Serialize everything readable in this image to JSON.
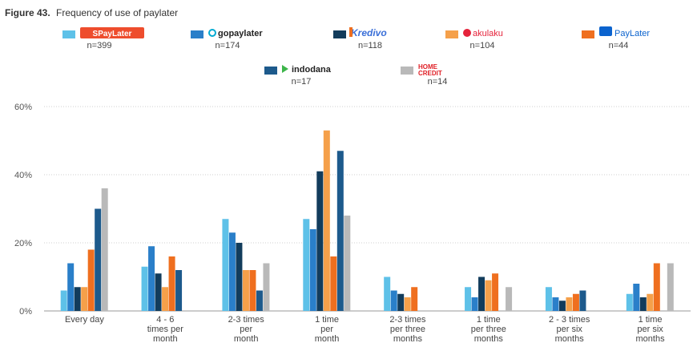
{
  "figure": {
    "label": "Figure 43.",
    "caption": "Frequency of use of paylater"
  },
  "chart_data": {
    "type": "bar",
    "title": "Frequency of use of paylater",
    "ylim": [
      0,
      60
    ],
    "yticks": [
      0,
      20,
      40,
      60
    ],
    "ytick_labels": [
      "0%",
      "20%",
      "40%",
      "60%"
    ],
    "grid": true,
    "legend_position": "top",
    "categories": [
      [
        "Every day"
      ],
      [
        "4 - 6",
        "times per",
        "month"
      ],
      [
        "2-3 times",
        "per",
        "month"
      ],
      [
        "1 time",
        "per",
        "month"
      ],
      [
        "2-3 times",
        "per three",
        "months"
      ],
      [
        "1 time",
        "per three",
        "months"
      ],
      [
        "2 - 3 times",
        "per six",
        "months"
      ],
      [
        "1 time",
        "per six",
        "months"
      ]
    ],
    "series": [
      {
        "name": "SPayLater",
        "n": "n=399",
        "color": "#5ec1e8",
        "icon": "spaylater-logo",
        "values": [
          6,
          13,
          27,
          27,
          10,
          7,
          7,
          5
        ]
      },
      {
        "name": "gopaylater",
        "n": "n=174",
        "color": "#2a7fc9",
        "icon": "gopaylater-logo",
        "values": [
          14,
          19,
          23,
          24,
          6,
          4,
          4,
          8
        ]
      },
      {
        "name": "Kredivo",
        "n": "n=118",
        "color": "#123c5c",
        "icon": "kredivo-logo",
        "values": [
          7,
          11,
          20,
          41,
          5,
          10,
          3,
          4
        ]
      },
      {
        "name": "akulaku",
        "n": "n=104",
        "color": "#f5a04a",
        "icon": "akulaku-logo",
        "values": [
          7,
          7,
          12,
          53,
          4,
          9,
          4,
          5
        ]
      },
      {
        "name": "PayLater",
        "n": "n=44",
        "color": "#ef6f1f",
        "icon": "paylater-logo",
        "values": [
          18,
          16,
          12,
          16,
          7,
          11,
          5,
          14
        ]
      },
      {
        "name": "indodana",
        "n": "n=17",
        "color": "#1d5a8c",
        "icon": "indodana-logo",
        "values": [
          30,
          12,
          6,
          47,
          0,
          0,
          6,
          0
        ]
      },
      {
        "name": "HOME CREDIT",
        "n": "n=14",
        "color": "#b9b9b9",
        "icon": "home-credit-logo",
        "values": [
          36,
          0,
          14,
          28,
          0,
          7,
          0,
          14
        ]
      }
    ]
  }
}
